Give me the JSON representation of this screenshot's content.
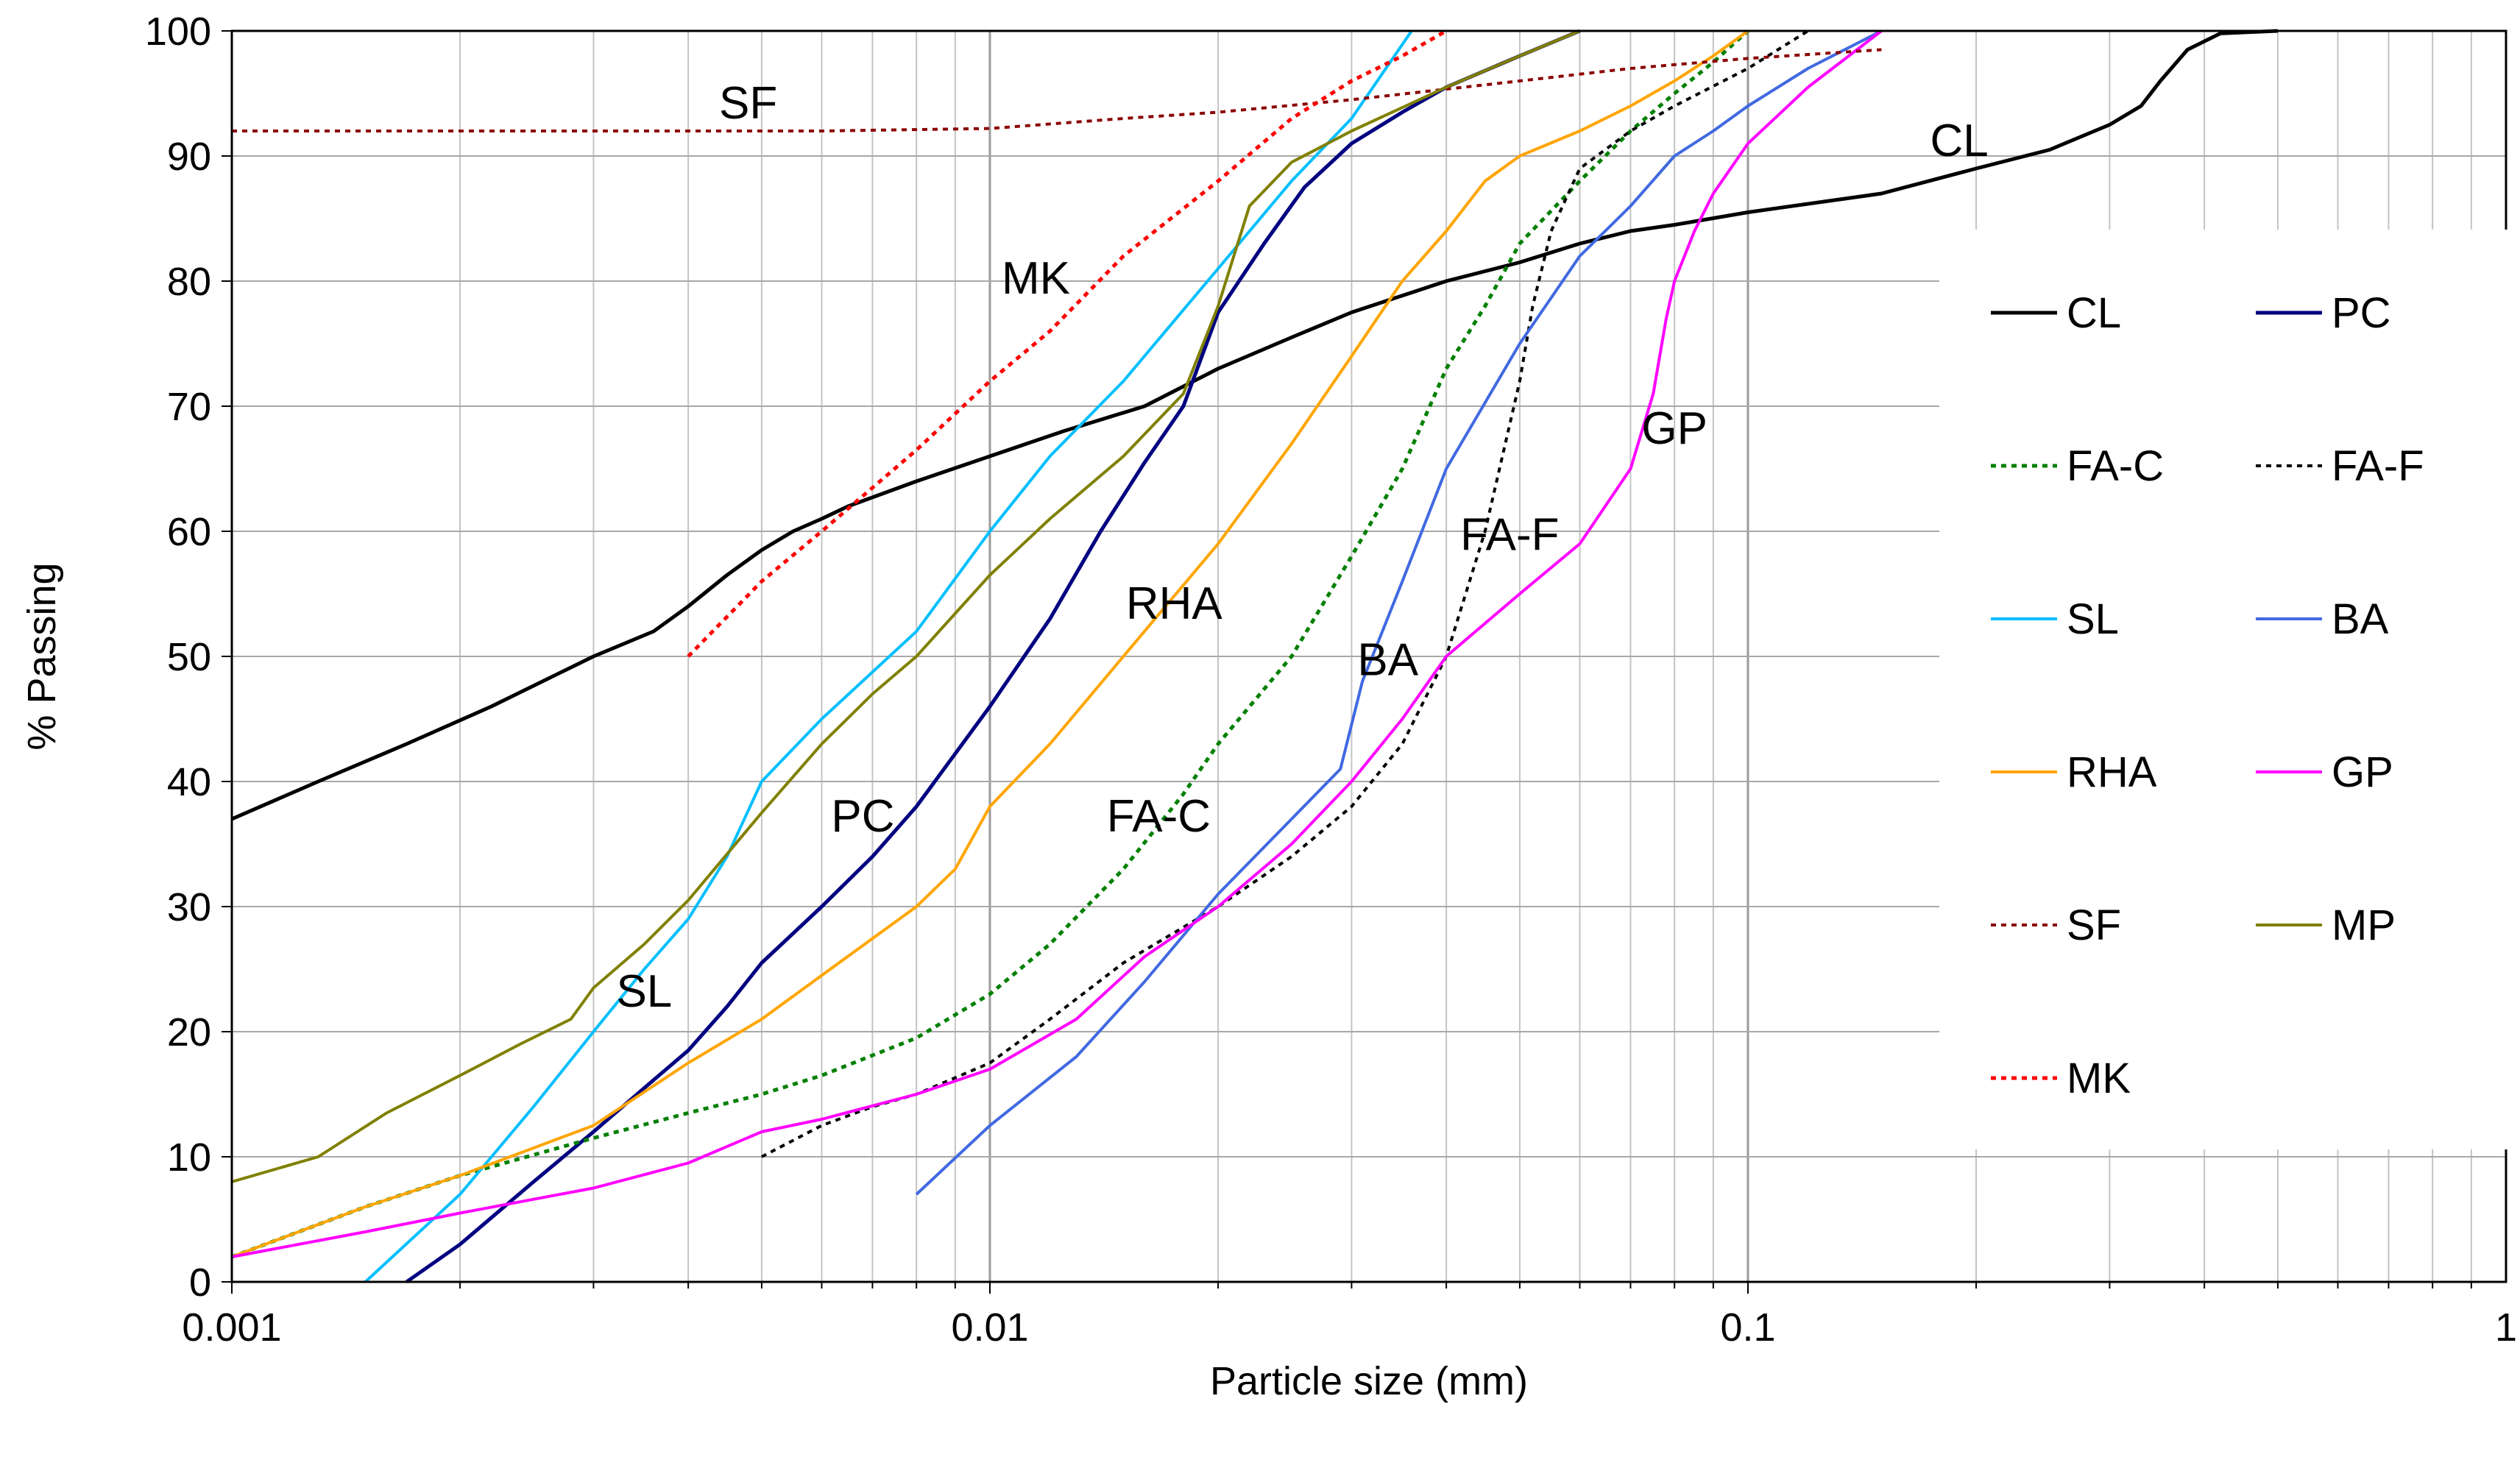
{
  "chart_data": {
    "type": "line",
    "xscale": "log",
    "xlabel": "Particle size (mm)",
    "ylabel": "% Passing",
    "xlim": [
      0.001,
      1
    ],
    "ylim": [
      0,
      100
    ],
    "xticks": [
      "0.001",
      "0.01",
      "0.1",
      "1"
    ],
    "yticks": [
      "0",
      "10",
      "20",
      "30",
      "40",
      "50",
      "60",
      "70",
      "80",
      "90",
      "100"
    ],
    "grid": true,
    "legend_position": "right",
    "series": [
      {
        "name": "CL",
        "color": "#000000",
        "dash": "solid",
        "width": 5,
        "points": [
          [
            0.001,
            37
          ],
          [
            0.0013,
            40
          ],
          [
            0.0017,
            43
          ],
          [
            0.0022,
            46
          ],
          [
            0.003,
            50
          ],
          [
            0.0036,
            52
          ],
          [
            0.004,
            54
          ],
          [
            0.0045,
            56.5
          ],
          [
            0.005,
            58.5
          ],
          [
            0.0055,
            60
          ],
          [
            0.006,
            61
          ],
          [
            0.0065,
            62
          ],
          [
            0.008,
            64
          ],
          [
            0.01,
            66
          ],
          [
            0.0125,
            68
          ],
          [
            0.016,
            70
          ],
          [
            0.02,
            73
          ],
          [
            0.025,
            75.5
          ],
          [
            0.03,
            77.5
          ],
          [
            0.04,
            80
          ],
          [
            0.05,
            81.5
          ],
          [
            0.06,
            83
          ],
          [
            0.07,
            84
          ],
          [
            0.08,
            84.5
          ],
          [
            0.1,
            85.5
          ],
          [
            0.15,
            87
          ],
          [
            0.2,
            89
          ],
          [
            0.25,
            90.5
          ],
          [
            0.3,
            92.5
          ],
          [
            0.33,
            94
          ],
          [
            0.35,
            96
          ],
          [
            0.38,
            98.5
          ],
          [
            0.42,
            99.8
          ],
          [
            0.5,
            100
          ]
        ]
      },
      {
        "name": "PC",
        "color": "#000080",
        "dash": "solid",
        "width": 5,
        "points": [
          [
            0.0017,
            0
          ],
          [
            0.002,
            3
          ],
          [
            0.0025,
            8
          ],
          [
            0.003,
            12
          ],
          [
            0.0035,
            15.5
          ],
          [
            0.004,
            18.5
          ],
          [
            0.0045,
            22
          ],
          [
            0.005,
            25.5
          ],
          [
            0.006,
            30
          ],
          [
            0.007,
            34
          ],
          [
            0.008,
            38
          ],
          [
            0.01,
            46
          ],
          [
            0.012,
            53
          ],
          [
            0.014,
            60
          ],
          [
            0.016,
            65.5
          ],
          [
            0.018,
            70
          ],
          [
            0.02,
            77.5
          ],
          [
            0.023,
            83
          ],
          [
            0.026,
            87.5
          ],
          [
            0.03,
            91
          ],
          [
            0.035,
            93.5
          ],
          [
            0.04,
            95.5
          ],
          [
            0.05,
            98
          ],
          [
            0.06,
            100
          ]
        ]
      },
      {
        "name": "FA-C",
        "color": "#008000",
        "dash": "dot",
        "width": 5,
        "points": [
          [
            0.001,
            2
          ],
          [
            0.0015,
            6
          ],
          [
            0.002,
            8.5
          ],
          [
            0.003,
            11.5
          ],
          [
            0.004,
            13.5
          ],
          [
            0.005,
            15
          ],
          [
            0.006,
            16.5
          ],
          [
            0.008,
            19.5
          ],
          [
            0.01,
            23
          ],
          [
            0.012,
            27
          ],
          [
            0.015,
            33
          ],
          [
            0.018,
            39
          ],
          [
            0.02,
            43
          ],
          [
            0.025,
            50
          ],
          [
            0.03,
            58
          ],
          [
            0.035,
            65
          ],
          [
            0.04,
            73
          ],
          [
            0.045,
            78
          ],
          [
            0.05,
            83
          ],
          [
            0.06,
            88
          ],
          [
            0.07,
            92
          ],
          [
            0.08,
            95
          ],
          [
            0.09,
            97.5
          ],
          [
            0.1,
            100
          ]
        ]
      },
      {
        "name": "FA-F",
        "color": "#000000",
        "dash": "dot",
        "width": 4,
        "points": [
          [
            0.005,
            10
          ],
          [
            0.006,
            12.5
          ],
          [
            0.007,
            14
          ],
          [
            0.008,
            15
          ],
          [
            0.01,
            17.5
          ],
          [
            0.012,
            21
          ],
          [
            0.015,
            25.5
          ],
          [
            0.02,
            30
          ],
          [
            0.025,
            34
          ],
          [
            0.03,
            38
          ],
          [
            0.035,
            43
          ],
          [
            0.04,
            50
          ],
          [
            0.045,
            60
          ],
          [
            0.05,
            72
          ],
          [
            0.052,
            78
          ],
          [
            0.055,
            84
          ],
          [
            0.06,
            89
          ],
          [
            0.07,
            92
          ],
          [
            0.08,
            94
          ],
          [
            0.1,
            97
          ],
          [
            0.12,
            100
          ]
        ]
      },
      {
        "name": "SL",
        "color": "#00BFFF",
        "dash": "solid",
        "width": 4,
        "points": [
          [
            0.0015,
            0
          ],
          [
            0.002,
            7
          ],
          [
            0.0025,
            14
          ],
          [
            0.003,
            20
          ],
          [
            0.0035,
            25
          ],
          [
            0.004,
            29
          ],
          [
            0.0045,
            34
          ],
          [
            0.005,
            40
          ],
          [
            0.006,
            45
          ],
          [
            0.008,
            52
          ],
          [
            0.01,
            60
          ],
          [
            0.012,
            66
          ],
          [
            0.015,
            72
          ],
          [
            0.02,
            81
          ],
          [
            0.025,
            88
          ],
          [
            0.03,
            93
          ],
          [
            0.036,
            100
          ]
        ]
      },
      {
        "name": "BA",
        "color": "#4169E1",
        "dash": "solid",
        "width": 4,
        "points": [
          [
            0.008,
            7
          ],
          [
            0.01,
            12.5
          ],
          [
            0.013,
            18
          ],
          [
            0.016,
            24
          ],
          [
            0.02,
            31
          ],
          [
            0.025,
            37
          ],
          [
            0.029,
            41
          ],
          [
            0.031,
            48
          ],
          [
            0.035,
            56
          ],
          [
            0.04,
            65
          ],
          [
            0.05,
            75
          ],
          [
            0.06,
            82
          ],
          [
            0.07,
            86
          ],
          [
            0.08,
            90
          ],
          [
            0.09,
            92
          ],
          [
            0.1,
            94
          ],
          [
            0.12,
            97
          ],
          [
            0.15,
            100
          ]
        ]
      },
      {
        "name": "RHA",
        "color": "#FFA500",
        "dash": "solid",
        "width": 4,
        "points": [
          [
            0.001,
            2
          ],
          [
            0.0015,
            6
          ],
          [
            0.002,
            8.5
          ],
          [
            0.003,
            12.5
          ],
          [
            0.004,
            17.5
          ],
          [
            0.005,
            21
          ],
          [
            0.006,
            24.5
          ],
          [
            0.008,
            30
          ],
          [
            0.009,
            33
          ],
          [
            0.01,
            38
          ],
          [
            0.012,
            43
          ],
          [
            0.015,
            50
          ],
          [
            0.02,
            59
          ],
          [
            0.025,
            67
          ],
          [
            0.03,
            74
          ],
          [
            0.035,
            80
          ],
          [
            0.04,
            84
          ],
          [
            0.045,
            88
          ],
          [
            0.05,
            90
          ],
          [
            0.06,
            92
          ],
          [
            0.07,
            94
          ],
          [
            0.08,
            96
          ],
          [
            0.09,
            98
          ],
          [
            0.1,
            100
          ]
        ]
      },
      {
        "name": "GP",
        "color": "#FF00FF",
        "dash": "solid",
        "width": 4,
        "points": [
          [
            0.001,
            2
          ],
          [
            0.0015,
            4
          ],
          [
            0.002,
            5.5
          ],
          [
            0.003,
            7.5
          ],
          [
            0.004,
            9.5
          ],
          [
            0.005,
            12
          ],
          [
            0.006,
            13
          ],
          [
            0.008,
            15
          ],
          [
            0.01,
            17
          ],
          [
            0.013,
            21
          ],
          [
            0.016,
            26
          ],
          [
            0.02,
            30
          ],
          [
            0.025,
            35
          ],
          [
            0.03,
            40
          ],
          [
            0.035,
            45
          ],
          [
            0.04,
            50
          ],
          [
            0.05,
            55
          ],
          [
            0.06,
            59
          ],
          [
            0.07,
            65
          ],
          [
            0.075,
            71
          ],
          [
            0.078,
            77
          ],
          [
            0.08,
            80
          ],
          [
            0.085,
            84
          ],
          [
            0.09,
            87
          ],
          [
            0.1,
            91
          ],
          [
            0.12,
            95.5
          ],
          [
            0.15,
            100
          ]
        ]
      },
      {
        "name": "SF",
        "color": "#8B0000",
        "dash": "dot",
        "width": 4,
        "points": [
          [
            0.001,
            92
          ],
          [
            0.002,
            92
          ],
          [
            0.004,
            92
          ],
          [
            0.006,
            92
          ],
          [
            0.01,
            92.2
          ],
          [
            0.015,
            93
          ],
          [
            0.02,
            93.5
          ],
          [
            0.03,
            94.5
          ],
          [
            0.05,
            96
          ],
          [
            0.07,
            97
          ],
          [
            0.1,
            97.8
          ],
          [
            0.15,
            98.5
          ]
        ]
      },
      {
        "name": "MP",
        "color": "#808000",
        "dash": "solid",
        "width": 4,
        "points": [
          [
            0.001,
            8
          ],
          [
            0.0013,
            10
          ],
          [
            0.0016,
            13.5
          ],
          [
            0.002,
            16.5
          ],
          [
            0.0024,
            19
          ],
          [
            0.0028,
            21
          ],
          [
            0.003,
            23.5
          ],
          [
            0.0035,
            27
          ],
          [
            0.004,
            30.5
          ],
          [
            0.005,
            37.5
          ],
          [
            0.006,
            43
          ],
          [
            0.007,
            47
          ],
          [
            0.008,
            50
          ],
          [
            0.01,
            56.5
          ],
          [
            0.012,
            61
          ],
          [
            0.015,
            66
          ],
          [
            0.018,
            71
          ],
          [
            0.02,
            78
          ],
          [
            0.022,
            86
          ],
          [
            0.025,
            89.5
          ],
          [
            0.03,
            92
          ],
          [
            0.04,
            95.5
          ],
          [
            0.05,
            98
          ],
          [
            0.06,
            100
          ]
        ]
      },
      {
        "name": "MK",
        "color": "#FF0000",
        "dash": "dot",
        "width": 5,
        "points": [
          [
            0.004,
            50
          ],
          [
            0.005,
            56
          ],
          [
            0.006,
            60
          ],
          [
            0.008,
            66.5
          ],
          [
            0.01,
            72
          ],
          [
            0.012,
            76
          ],
          [
            0.015,
            82
          ],
          [
            0.02,
            88
          ],
          [
            0.025,
            93
          ],
          [
            0.03,
            96
          ],
          [
            0.035,
            98
          ],
          [
            0.04,
            100
          ]
        ]
      }
    ],
    "annotations": [
      {
        "text": "SF",
        "x": 0.0048,
        "y": 93
      },
      {
        "text": "MK",
        "x": 0.0115,
        "y": 79
      },
      {
        "text": "CL",
        "x": 0.19,
        "y": 90
      },
      {
        "text": "RHA",
        "x": 0.0175,
        "y": 53
      },
      {
        "text": "BA",
        "x": 0.0335,
        "y": 48.5
      },
      {
        "text": "FA-F",
        "x": 0.0485,
        "y": 58.5
      },
      {
        "text": "GP",
        "x": 0.08,
        "y": 67
      },
      {
        "text": "PC",
        "x": 0.0068,
        "y": 36
      },
      {
        "text": "FA-C",
        "x": 0.0167,
        "y": 36
      },
      {
        "text": "SL",
        "x": 0.0035,
        "y": 22
      }
    ]
  }
}
